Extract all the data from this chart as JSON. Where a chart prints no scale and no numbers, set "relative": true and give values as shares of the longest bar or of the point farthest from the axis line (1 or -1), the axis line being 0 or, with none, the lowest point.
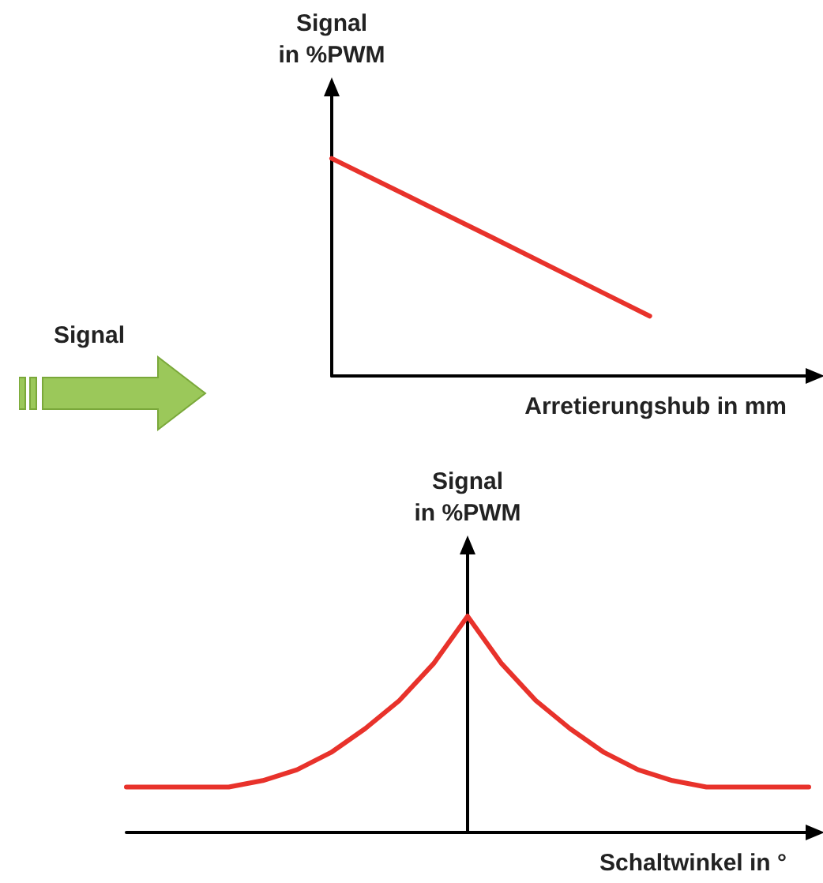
{
  "chart_data": [
    {
      "type": "line",
      "ylabel": "Signal\nin %PWM",
      "xlabel": "Arretierungshub in mm",
      "annotations": [
        "Signal"
      ],
      "relative": true,
      "categories": [
        null,
        null,
        null,
        null
      ],
      "series": [
        {
          "color": "#e8322b",
          "values": [
            1,
            0.64,
            0.275,
            null
          ]
        }
      ],
      "grid": false,
      "marker": "none",
      "line_style": "solid"
    },
    {
      "type": "line",
      "ylabel": "Signal\nin %PWM",
      "xlabel": "Schaltwinkel in °",
      "relative": true,
      "categories": [
        null,
        null,
        null,
        null,
        null,
        null,
        null,
        null,
        null,
        null,
        null,
        null,
        null,
        null,
        null,
        null,
        null,
        null,
        null,
        null,
        null
      ],
      "series": [
        {
          "color": "#e8322b",
          "values": [
            0.21,
            0.21,
            0.21,
            0.21,
            0.24,
            0.29,
            0.37,
            0.48,
            0.61,
            0.78,
            1,
            0.78,
            0.61,
            0.48,
            0.37,
            0.29,
            0.24,
            0.21,
            0.21,
            0.21,
            0.21
          ]
        }
      ],
      "grid": false,
      "marker": "none",
      "line_style": "solid"
    }
  ]
}
